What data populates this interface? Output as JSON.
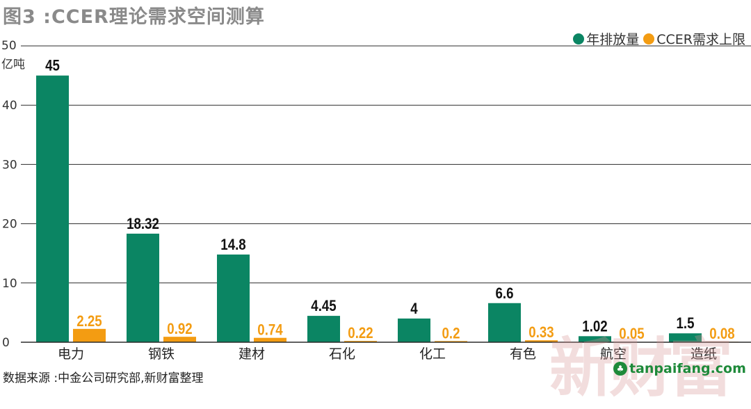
{
  "title": "图3 :CCER理论需求空间测算",
  "unit": {
    "top_tick": "50",
    "label": "亿吨"
  },
  "legend": [
    {
      "label": "年排放量",
      "color": "#0b8563"
    },
    {
      "label": "CCER需求上限",
      "color": "#f39c12"
    }
  ],
  "source": "数据来源 :中金公司研究部,新财富整理",
  "watermark": {
    "text": "新财富",
    "site": "tanpaifang.com"
  },
  "chart_data": {
    "type": "bar",
    "categories": [
      "电力",
      "钢铁",
      "建材",
      "石化",
      "化工",
      "有色",
      "航空",
      "造纸"
    ],
    "series": [
      {
        "name": "年排放量",
        "values": [
          45,
          18.32,
          14.8,
          4.45,
          4,
          6.6,
          1.02,
          1.5
        ],
        "labels": [
          "45",
          "18.32",
          "14.8",
          "4.45",
          "4",
          "6.6",
          "1.02",
          "1.5"
        ],
        "color": "#0b8563"
      },
      {
        "name": "CCER需求上限",
        "values": [
          2.25,
          0.92,
          0.74,
          0.22,
          0.2,
          0.33,
          0.05,
          0.08
        ],
        "labels": [
          "2.25",
          "0.92",
          "0.74",
          "0.22",
          "0.2",
          "0.33",
          "0.05",
          "0.08"
        ],
        "color": "#f39c12"
      }
    ],
    "yticks": [
      "0",
      "10",
      "20",
      "30",
      "40"
    ],
    "ylim": [
      0,
      50
    ],
    "grid": true,
    "legend_position": "top-right"
  }
}
